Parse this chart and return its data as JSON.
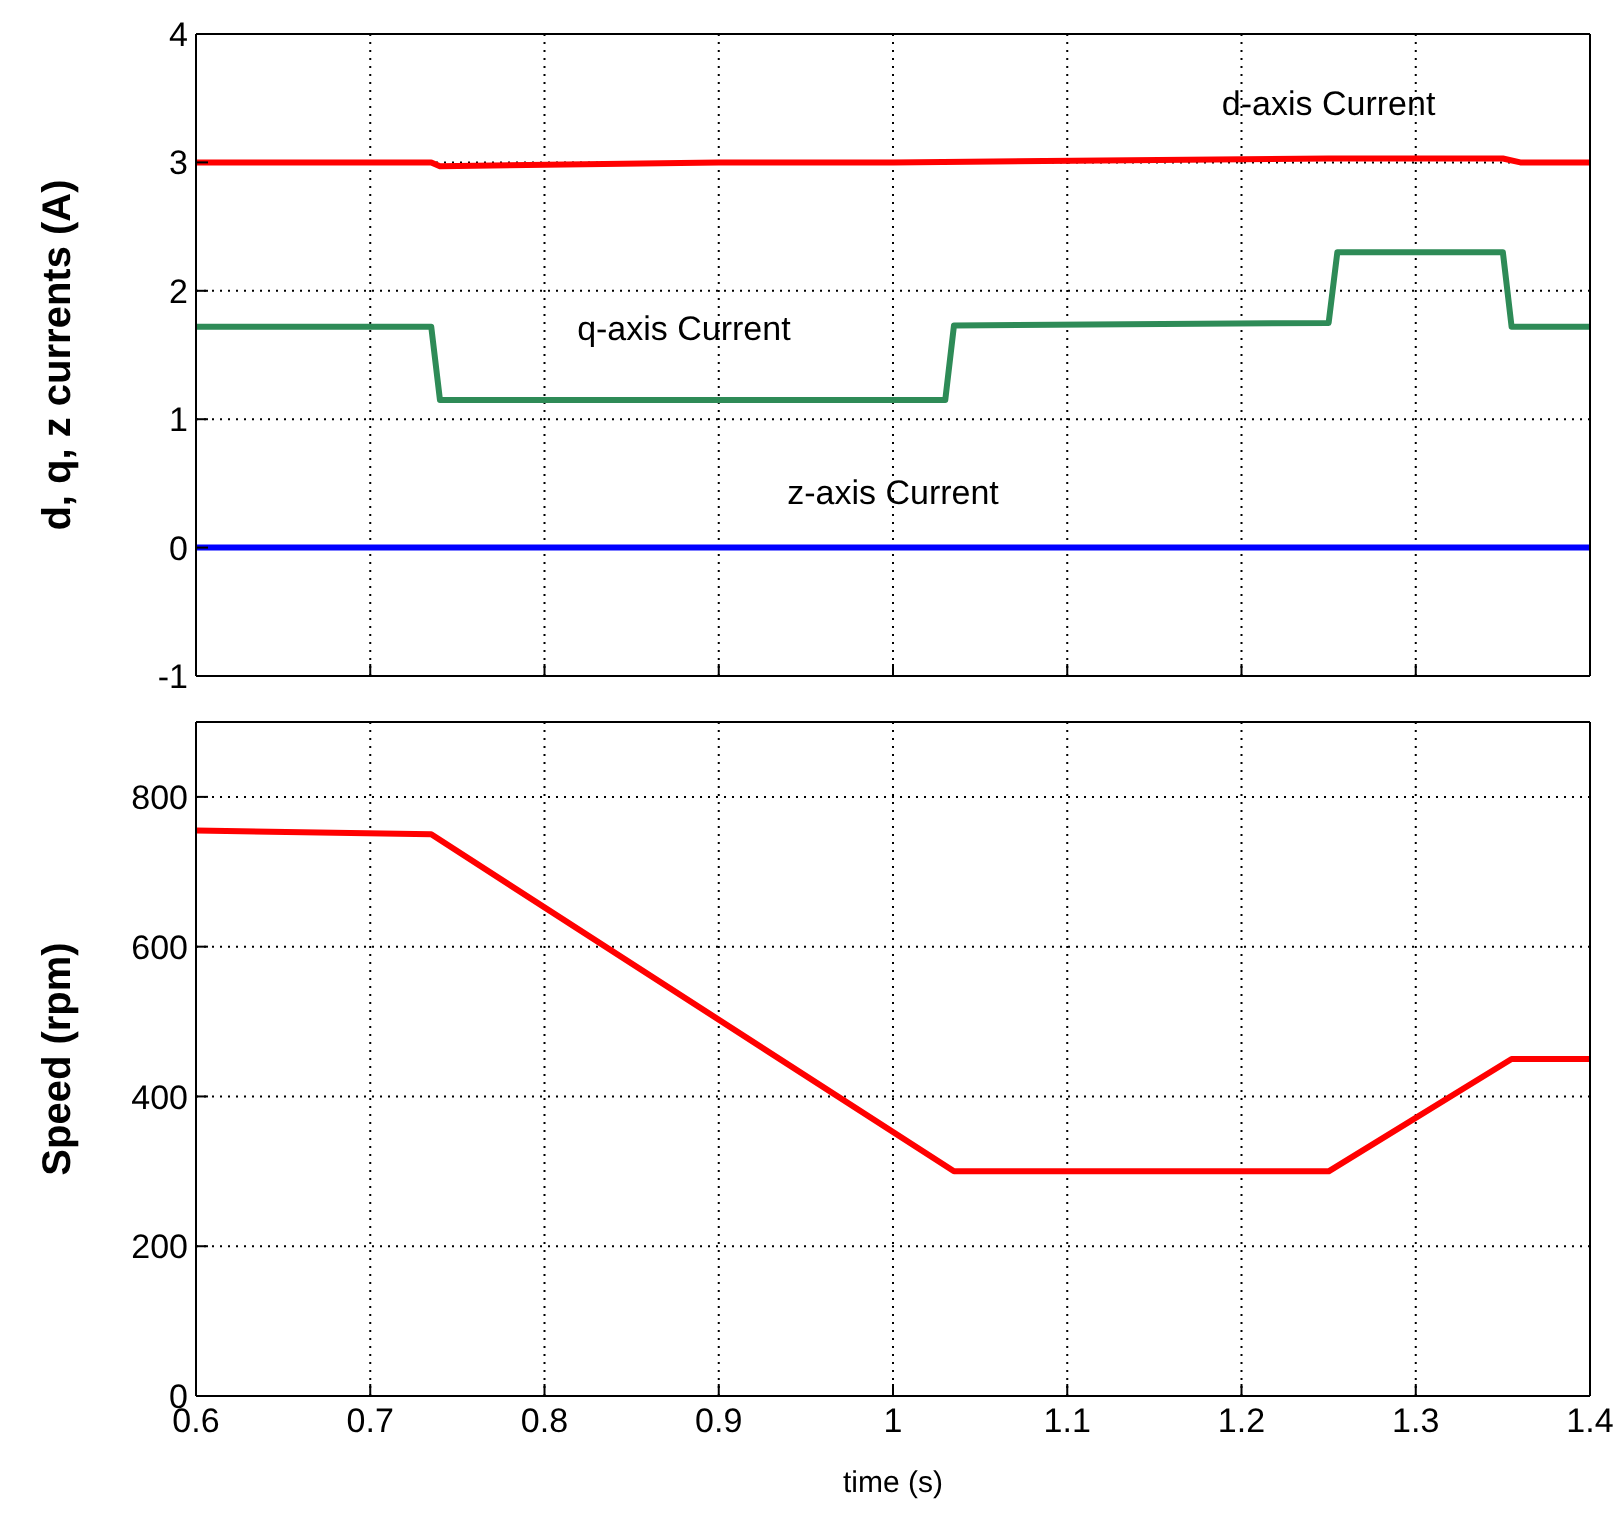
{
  "chart_data": [
    {
      "type": "line",
      "ylabel": "d, q, z currents (A)",
      "xlim": [
        0.6,
        1.4
      ],
      "xticks": [
        0.6,
        0.7,
        0.8,
        0.9,
        1,
        1.1,
        1.2,
        1.3,
        1.4
      ],
      "ylim": [
        -1,
        4
      ],
      "yticks": [
        -1,
        0,
        1,
        2,
        3,
        4
      ],
      "grid": true,
      "tick_labels": "y",
      "series": [
        {
          "name": "d-axis Current",
          "color": "#ff0000",
          "x": [
            0.6,
            0.735,
            0.74,
            0.9,
            1.0,
            1.25,
            1.35,
            1.36,
            1.4
          ],
          "values": [
            3.0,
            3.0,
            2.97,
            3.0,
            3.0,
            3.03,
            3.03,
            3.0,
            3.0
          ]
        },
        {
          "name": "q-axis Current",
          "color": "#2e8b57",
          "x": [
            0.6,
            0.735,
            0.74,
            0.88,
            1.03,
            1.035,
            1.25,
            1.255,
            1.35,
            1.355,
            1.4
          ],
          "values": [
            1.72,
            1.72,
            1.15,
            1.15,
            1.15,
            1.73,
            1.75,
            2.3,
            2.3,
            1.72,
            1.72
          ]
        },
        {
          "name": "z-axis Current",
          "color": "#0000ff",
          "x": [
            0.6,
            1.0,
            1.4
          ],
          "values": [
            0,
            0,
            0
          ]
        }
      ]
    },
    {
      "type": "line",
      "xlabel": "time (s)",
      "ylabel": "Speed (rpm)",
      "xlim": [
        0.6,
        1.4
      ],
      "xticks": [
        0.6,
        0.7,
        0.8,
        0.9,
        1,
        1.1,
        1.2,
        1.3,
        1.4
      ],
      "ylim": [
        0,
        900
      ],
      "yticks": [
        0,
        200,
        400,
        600,
        800
      ],
      "grid": true,
      "series": [
        {
          "color": "#ff0000",
          "x": [
            0.6,
            0.735,
            1.035,
            1.25,
            1.355,
            1.4
          ],
          "values": [
            755,
            750,
            300,
            300,
            450,
            450
          ]
        }
      ]
    }
  ]
}
